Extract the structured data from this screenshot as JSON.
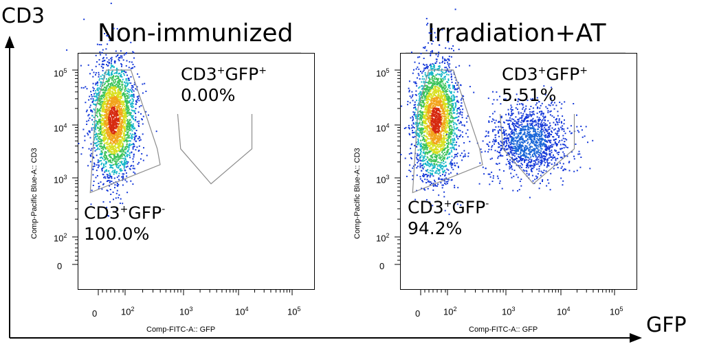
{
  "figure": {
    "y_axis_label": "CD3",
    "x_axis_label": "GFP"
  },
  "chart_data": [
    {
      "type": "scatter",
      "title": "Non-immunized",
      "xlabel": "Comp-FITC-A:: GFP",
      "ylabel": "Comp-Pacific Blue-A:: CD3",
      "x_scale": "biexponential",
      "y_scale": "biexponential",
      "x_ticks": [
        "0",
        "10^2",
        "10^3",
        "10^4",
        "10^5"
      ],
      "y_ticks": [
        "0",
        "10^2",
        "10^3",
        "10^4",
        "10^5"
      ],
      "gates": [
        {
          "name": "CD3+GFP-",
          "label_main": "CD3",
          "sup1": "+",
          "mid": "GFP",
          "sup2": "-",
          "percent": "100.0%"
        },
        {
          "name": "CD3+GFP+",
          "label_main": "CD3",
          "sup1": "+",
          "mid": "GFP",
          "sup2": "+",
          "percent": "0.00%"
        }
      ],
      "populations": [
        {
          "name": "CD3+GFP-",
          "center_gfp_log": 1.55,
          "center_cd3_log": 4.1,
          "density": "high"
        }
      ]
    },
    {
      "type": "scatter",
      "title": "Irradiation+AT",
      "xlabel": "Comp-FITC-A:: GFP",
      "ylabel": "Comp-Pacific Blue-A:: CD3",
      "x_scale": "biexponential",
      "y_scale": "biexponential",
      "x_ticks": [
        "0",
        "10^2",
        "10^3",
        "10^4",
        "10^5"
      ],
      "y_ticks": [
        "0",
        "10^2",
        "10^3",
        "10^4",
        "10^5"
      ],
      "gates": [
        {
          "name": "CD3+GFP-",
          "label_main": "CD3",
          "sup1": "+",
          "mid": "GFP",
          "sup2": "-",
          "percent": "94.2%"
        },
        {
          "name": "CD3+GFP+",
          "label_main": "CD3",
          "sup1": "+",
          "mid": "GFP",
          "sup2": "+",
          "percent": "5.51%"
        }
      ],
      "populations": [
        {
          "name": "CD3+GFP-",
          "center_gfp_log": 1.55,
          "center_cd3_log": 4.1,
          "density": "high"
        },
        {
          "name": "CD3+GFP+",
          "center_gfp_log": 3.4,
          "center_cd3_log": 3.7,
          "density": "medium"
        }
      ]
    }
  ]
}
